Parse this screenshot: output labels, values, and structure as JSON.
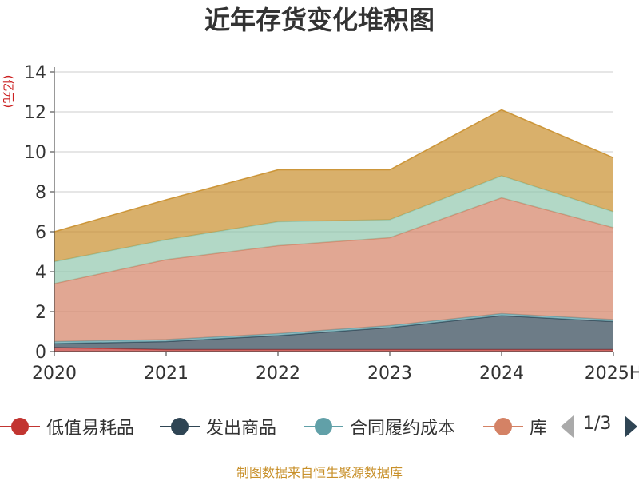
{
  "chart_data": {
    "type": "area",
    "title": "近年存货变化堆积图",
    "unit_label": "(亿元)",
    "categories": [
      "2020",
      "2021",
      "2022",
      "2023",
      "2024",
      "2025H"
    ],
    "y_ticks": [
      "0",
      "2",
      "4",
      "6",
      "8",
      "10",
      "12",
      "14"
    ],
    "ylim": [
      0,
      14
    ],
    "grid": true,
    "stacked": true,
    "series": [
      {
        "name": "低值易耗品",
        "color": "#c23531",
        "values": [
          0.2,
          0.1,
          0.1,
          0.1,
          0.1,
          0.1
        ]
      },
      {
        "name": "发出商品",
        "color": "#2f4554",
        "values": [
          0.2,
          0.4,
          0.7,
          1.1,
          1.7,
          1.4
        ]
      },
      {
        "name": "合同履约成本",
        "color": "#61a0a8",
        "values": [
          0.1,
          0.1,
          0.1,
          0.1,
          0.1,
          0.1
        ]
      },
      {
        "name": "库存商品",
        "color": "#d48265",
        "values": [
          2.9,
          4.0,
          4.4,
          4.4,
          5.8,
          4.6
        ]
      },
      {
        "name": "",
        "color": "#91c7ae",
        "values": [
          1.1,
          1.0,
          1.2,
          0.9,
          1.1,
          0.8
        ]
      },
      {
        "name": "",
        "color": "#c98f2c",
        "values": [
          1.5,
          2.0,
          2.6,
          2.5,
          3.3,
          2.7
        ]
      }
    ]
  },
  "legend": {
    "items": [
      {
        "label": "低值易耗品",
        "color": "#c23531"
      },
      {
        "label": "发出商品",
        "color": "#2f4554"
      },
      {
        "label": "合同履约成本",
        "color": "#61a0a8"
      },
      {
        "label": "库",
        "color": "#d48265"
      }
    ],
    "page": "1/3"
  },
  "source_text": "制图数据来自恒生聚源数据库"
}
